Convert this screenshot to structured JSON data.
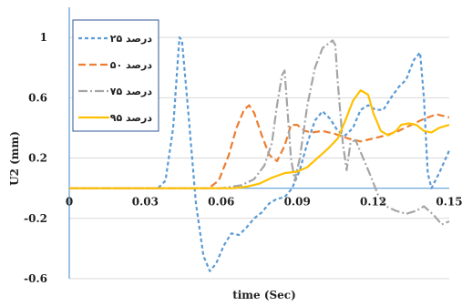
{
  "chart_data": {
    "type": "line",
    "xlabel": "time (Sec)",
    "ylabel": "U2 (mm)",
    "xlim": [
      0,
      0.15
    ],
    "ylim": [
      -0.6,
      1.2
    ],
    "x_ticks": [
      {
        "value": 0,
        "label": "0"
      },
      {
        "value": 0.03,
        "label": "0.03"
      },
      {
        "value": 0.06,
        "label": "0.06"
      },
      {
        "value": 0.09,
        "label": "0.09"
      },
      {
        "value": 0.12,
        "label": "0.12"
      },
      {
        "value": 0.15,
        "label": "0.15"
      }
    ],
    "y_ticks": [
      {
        "value": 1,
        "label": "1"
      },
      {
        "value": 0.6,
        "label": "0.6"
      },
      {
        "value": 0.2,
        "label": "0.2"
      },
      {
        "value": -0.2,
        "label": "-0.2"
      },
      {
        "value": -0.6,
        "label": "-0.6"
      }
    ],
    "grid": "horizontal",
    "legend_position": "top-left",
    "series": [
      {
        "name": "۲۵ درصد",
        "color": "#5b9bd5",
        "dash": "4,3",
        "points": [
          [
            0,
            0
          ],
          [
            0.035,
            0
          ],
          [
            0.038,
            0.05
          ],
          [
            0.041,
            0.4
          ],
          [
            0.0435,
            1.0
          ],
          [
            0.0445,
            0.98
          ],
          [
            0.047,
            0.5
          ],
          [
            0.05,
            -0.1
          ],
          [
            0.053,
            -0.45
          ],
          [
            0.0555,
            -0.55
          ],
          [
            0.058,
            -0.5
          ],
          [
            0.061,
            -0.38
          ],
          [
            0.064,
            -0.3
          ],
          [
            0.067,
            -0.31
          ],
          [
            0.07,
            -0.26
          ],
          [
            0.073,
            -0.2
          ],
          [
            0.076,
            -0.16
          ],
          [
            0.079,
            -0.1
          ],
          [
            0.082,
            -0.07
          ],
          [
            0.085,
            -0.06
          ],
          [
            0.088,
            0.0
          ],
          [
            0.091,
            0.12
          ],
          [
            0.094,
            0.3
          ],
          [
            0.097,
            0.45
          ],
          [
            0.1,
            0.51
          ],
          [
            0.103,
            0.46
          ],
          [
            0.106,
            0.38
          ],
          [
            0.109,
            0.35
          ],
          [
            0.112,
            0.4
          ],
          [
            0.115,
            0.52
          ],
          [
            0.118,
            0.55
          ],
          [
            0.121,
            0.52
          ],
          [
            0.124,
            0.52
          ],
          [
            0.127,
            0.6
          ],
          [
            0.13,
            0.67
          ],
          [
            0.133,
            0.72
          ],
          [
            0.136,
            0.85
          ],
          [
            0.1385,
            0.9
          ],
          [
            0.14,
            0.6
          ],
          [
            0.1415,
            0.1
          ],
          [
            0.143,
            0.0
          ],
          [
            0.146,
            0.1
          ],
          [
            0.15,
            0.25
          ]
        ]
      },
      {
        "name": "۵۰ درصد",
        "color": "#ed7d31",
        "dash": "8,4",
        "points": [
          [
            0,
            0
          ],
          [
            0.055,
            0
          ],
          [
            0.059,
            0.05
          ],
          [
            0.063,
            0.22
          ],
          [
            0.066,
            0.4
          ],
          [
            0.069,
            0.52
          ],
          [
            0.071,
            0.55
          ],
          [
            0.073,
            0.5
          ],
          [
            0.076,
            0.35
          ],
          [
            0.079,
            0.22
          ],
          [
            0.082,
            0.18
          ],
          [
            0.085,
            0.28
          ],
          [
            0.0875,
            0.42
          ],
          [
            0.09,
            0.42
          ],
          [
            0.093,
            0.38
          ],
          [
            0.096,
            0.37
          ],
          [
            0.1,
            0.38
          ],
          [
            0.105,
            0.36
          ],
          [
            0.11,
            0.33
          ],
          [
            0.115,
            0.31
          ],
          [
            0.12,
            0.33
          ],
          [
            0.125,
            0.35
          ],
          [
            0.13,
            0.38
          ],
          [
            0.135,
            0.42
          ],
          [
            0.14,
            0.46
          ],
          [
            0.145,
            0.49
          ],
          [
            0.15,
            0.47
          ]
        ]
      },
      {
        "name": "۷۵ درصد",
        "color": "#a5a5a5",
        "dash": "10,3,2,3",
        "points": [
          [
            0,
            0
          ],
          [
            0.06,
            0
          ],
          [
            0.068,
            0.02
          ],
          [
            0.073,
            0.06
          ],
          [
            0.077,
            0.15
          ],
          [
            0.08,
            0.3
          ],
          [
            0.082,
            0.55
          ],
          [
            0.084,
            0.75
          ],
          [
            0.085,
            0.78
          ],
          [
            0.086,
            0.55
          ],
          [
            0.0875,
            0.2
          ],
          [
            0.089,
            0.05
          ],
          [
            0.091,
            0.2
          ],
          [
            0.094,
            0.55
          ],
          [
            0.097,
            0.8
          ],
          [
            0.1,
            0.93
          ],
          [
            0.104,
            0.98
          ],
          [
            0.105,
            0.95
          ],
          [
            0.106,
            0.7
          ],
          [
            0.108,
            0.3
          ],
          [
            0.1095,
            0.12
          ],
          [
            0.111,
            0.3
          ],
          [
            0.113,
            0.32
          ],
          [
            0.116,
            0.2
          ],
          [
            0.119,
            0.08
          ],
          [
            0.122,
            -0.05
          ],
          [
            0.125,
            -0.12
          ],
          [
            0.129,
            -0.15
          ],
          [
            0.133,
            -0.17
          ],
          [
            0.137,
            -0.15
          ],
          [
            0.14,
            -0.12
          ],
          [
            0.144,
            -0.18
          ],
          [
            0.147,
            -0.24
          ],
          [
            0.15,
            -0.22
          ]
        ]
      },
      {
        "name": "۹۵ درصد",
        "color": "#ffc000",
        "dash": "",
        "points": [
          [
            0,
            0
          ],
          [
            0.065,
            0
          ],
          [
            0.07,
            0.01
          ],
          [
            0.075,
            0.03
          ],
          [
            0.08,
            0.07
          ],
          [
            0.085,
            0.1
          ],
          [
            0.09,
            0.11
          ],
          [
            0.094,
            0.14
          ],
          [
            0.098,
            0.2
          ],
          [
            0.102,
            0.26
          ],
          [
            0.106,
            0.33
          ],
          [
            0.109,
            0.45
          ],
          [
            0.112,
            0.58
          ],
          [
            0.115,
            0.65
          ],
          [
            0.118,
            0.62
          ],
          [
            0.12,
            0.5
          ],
          [
            0.123,
            0.38
          ],
          [
            0.126,
            0.35
          ],
          [
            0.129,
            0.38
          ],
          [
            0.131,
            0.42
          ],
          [
            0.134,
            0.43
          ],
          [
            0.137,
            0.42
          ],
          [
            0.14,
            0.38
          ],
          [
            0.143,
            0.37
          ],
          [
            0.146,
            0.4
          ],
          [
            0.15,
            0.42
          ]
        ]
      }
    ]
  }
}
